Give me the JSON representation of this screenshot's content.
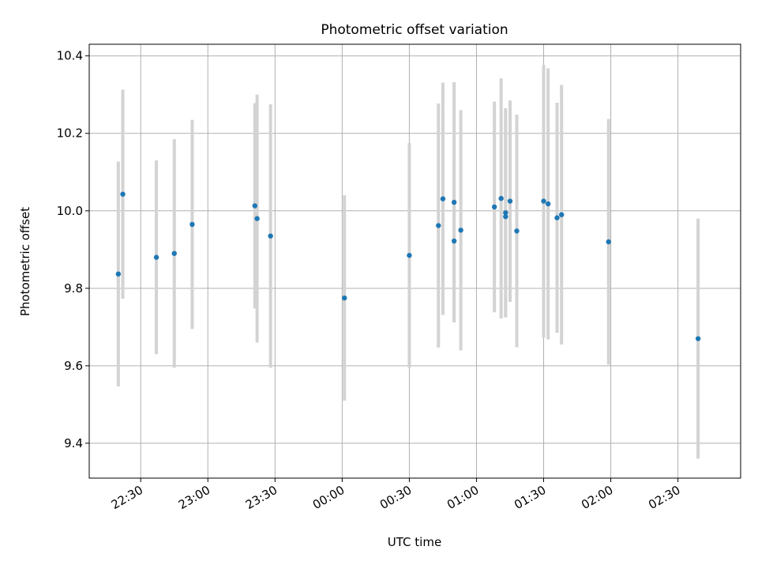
{
  "chart_data": {
    "type": "scatter",
    "title": "Photometric offset variation",
    "xlabel": "UTC time",
    "ylabel": "Photometric offset",
    "x_is_time": true,
    "ylim": [
      9.31,
      10.43
    ],
    "xlim": [
      "22:07",
      "02:58"
    ],
    "x_ticks": [
      "22:30",
      "23:00",
      "23:30",
      "00:00",
      "00:30",
      "01:00",
      "01:30",
      "02:00",
      "02:30"
    ],
    "y_ticks": [
      "9.4",
      "9.6",
      "9.8",
      "10.0",
      "10.2",
      "10.4"
    ],
    "grid": true,
    "point_color": "#1f77b4",
    "errorbar_color": "#d3d3d3",
    "points": [
      {
        "t": "22:20",
        "y": 9.837,
        "yerr": 0.29
      },
      {
        "t": "22:22",
        "y": 10.043,
        "yerr": 0.27
      },
      {
        "t": "22:37",
        "y": 9.88,
        "yerr": 0.25
      },
      {
        "t": "22:45",
        "y": 9.89,
        "yerr": 0.295
      },
      {
        "t": "22:53",
        "y": 9.965,
        "yerr": 0.27
      },
      {
        "t": "23:21",
        "y": 10.013,
        "yerr": 0.265
      },
      {
        "t": "23:22",
        "y": 9.98,
        "yerr": 0.32
      },
      {
        "t": "23:28",
        "y": 9.935,
        "yerr": 0.34
      },
      {
        "t": "00:01",
        "y": 9.775,
        "yerr": 0.265
      },
      {
        "t": "00:30",
        "y": 9.885,
        "yerr": 0.29
      },
      {
        "t": "00:43",
        "y": 9.962,
        "yerr": 0.315
      },
      {
        "t": "00:45",
        "y": 10.031,
        "yerr": 0.3
      },
      {
        "t": "00:50",
        "y": 10.022,
        "yerr": 0.31
      },
      {
        "t": "00:50",
        "y": 9.922,
        "yerr": 0.205
      },
      {
        "t": "00:53",
        "y": 9.95,
        "yerr": 0.31
      },
      {
        "t": "01:08",
        "y": 10.01,
        "yerr": 0.272
      },
      {
        "t": "01:11",
        "y": 10.032,
        "yerr": 0.31
      },
      {
        "t": "01:13",
        "y": 9.995,
        "yerr": 0.27
      },
      {
        "t": "01:13",
        "y": 9.985,
        "yerr": 0.26
      },
      {
        "t": "01:15",
        "y": 10.025,
        "yerr": 0.26
      },
      {
        "t": "01:18",
        "y": 9.948,
        "yerr": 0.3
      },
      {
        "t": "01:30",
        "y": 10.025,
        "yerr": 0.352
      },
      {
        "t": "01:32",
        "y": 10.018,
        "yerr": 0.35
      },
      {
        "t": "01:36",
        "y": 9.982,
        "yerr": 0.297
      },
      {
        "t": "01:38",
        "y": 9.99,
        "yerr": 0.335
      },
      {
        "t": "01:59",
        "y": 9.92,
        "yerr": 0.317
      },
      {
        "t": "02:39",
        "y": 9.67,
        "yerr": 0.31
      }
    ]
  }
}
